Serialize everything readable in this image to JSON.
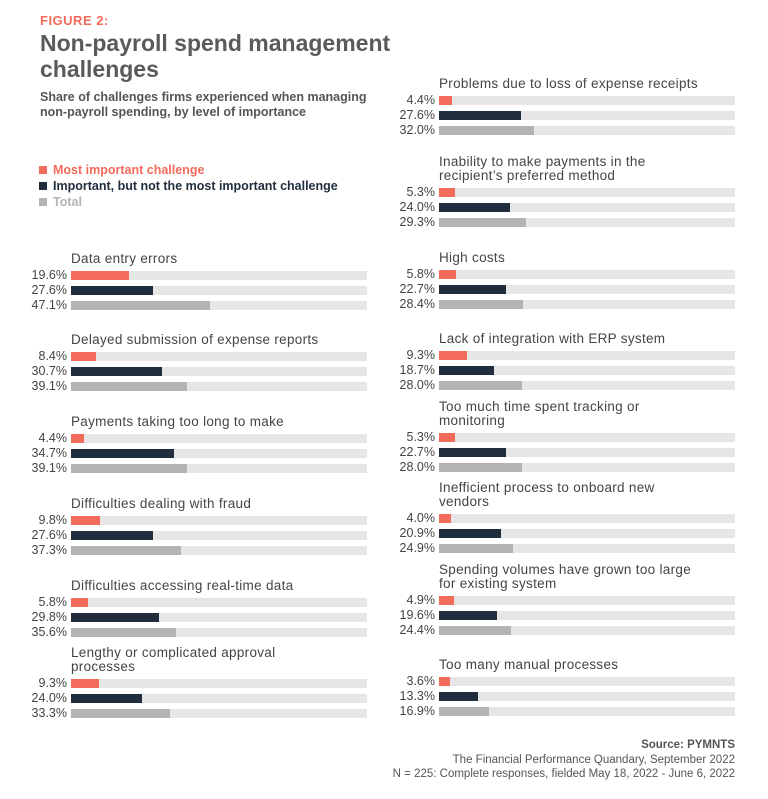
{
  "figure_label": "FIGURE 2:",
  "chart_data": {
    "type": "bar",
    "orientation": "horizontal",
    "title": "Non-payroll spend management challenges",
    "subtitle": "Share of challenges firms experienced when managing non-payroll spending, by level of importance",
    "xlim": [
      0,
      100
    ],
    "unit": "%",
    "legend_position": "top-left",
    "series": [
      {
        "name": "Most important challenge",
        "color": "#f26b5b"
      },
      {
        "name": "Important, but not the most important challenge",
        "color": "#1f2d3d"
      },
      {
        "name": "Total",
        "color": "#b3b3b3"
      }
    ],
    "track_color": "#e6e6e6",
    "columns": [
      [
        {
          "label": "Data entry errors",
          "values": [
            19.6,
            27.6,
            47.1
          ]
        },
        {
          "label": "Delayed submission of expense reports",
          "values": [
            8.4,
            30.7,
            39.1
          ]
        },
        {
          "label": "Payments taking too long to make",
          "values": [
            4.4,
            34.7,
            39.1
          ]
        },
        {
          "label": "Difficulties dealing with fraud",
          "values": [
            9.8,
            27.6,
            37.3
          ]
        },
        {
          "label": "Difficulties accessing real-time data",
          "values": [
            5.8,
            29.8,
            35.6
          ]
        },
        {
          "label": "Lengthy or complicated approval\nprocesses",
          "values": [
            9.3,
            24.0,
            33.3
          ]
        }
      ],
      [
        {
          "label": "Problems due to loss of expense receipts",
          "values": [
            4.4,
            27.6,
            32.0
          ]
        },
        {
          "label": "Inability to make payments in the\nrecipient’s preferred method",
          "values": [
            5.3,
            24.0,
            29.3
          ]
        },
        {
          "label": "High costs",
          "values": [
            5.8,
            22.7,
            28.4
          ]
        },
        {
          "label": "Lack of integration with ERP system",
          "values": [
            9.3,
            18.7,
            28.0
          ]
        },
        {
          "label": "Too much time spent tracking or\nmonitoring",
          "values": [
            5.3,
            22.7,
            28.0
          ]
        },
        {
          "label": "Inefficient process to onboard new\nvendors",
          "values": [
            4.0,
            20.9,
            24.9
          ]
        },
        {
          "label": "Spending volumes have grown too large\nfor existing system",
          "values": [
            4.9,
            19.6,
            24.4
          ]
        },
        {
          "label": "Too many manual processes",
          "values": [
            3.6,
            13.3,
            16.9
          ]
        }
      ]
    ]
  },
  "footer": {
    "source": "Source: PYMNTS",
    "publication": "The Financial Performance Quandary, September 2022",
    "sample": "N = 225: Complete responses, fielded May 18, 2022 - June 6, 2022"
  }
}
